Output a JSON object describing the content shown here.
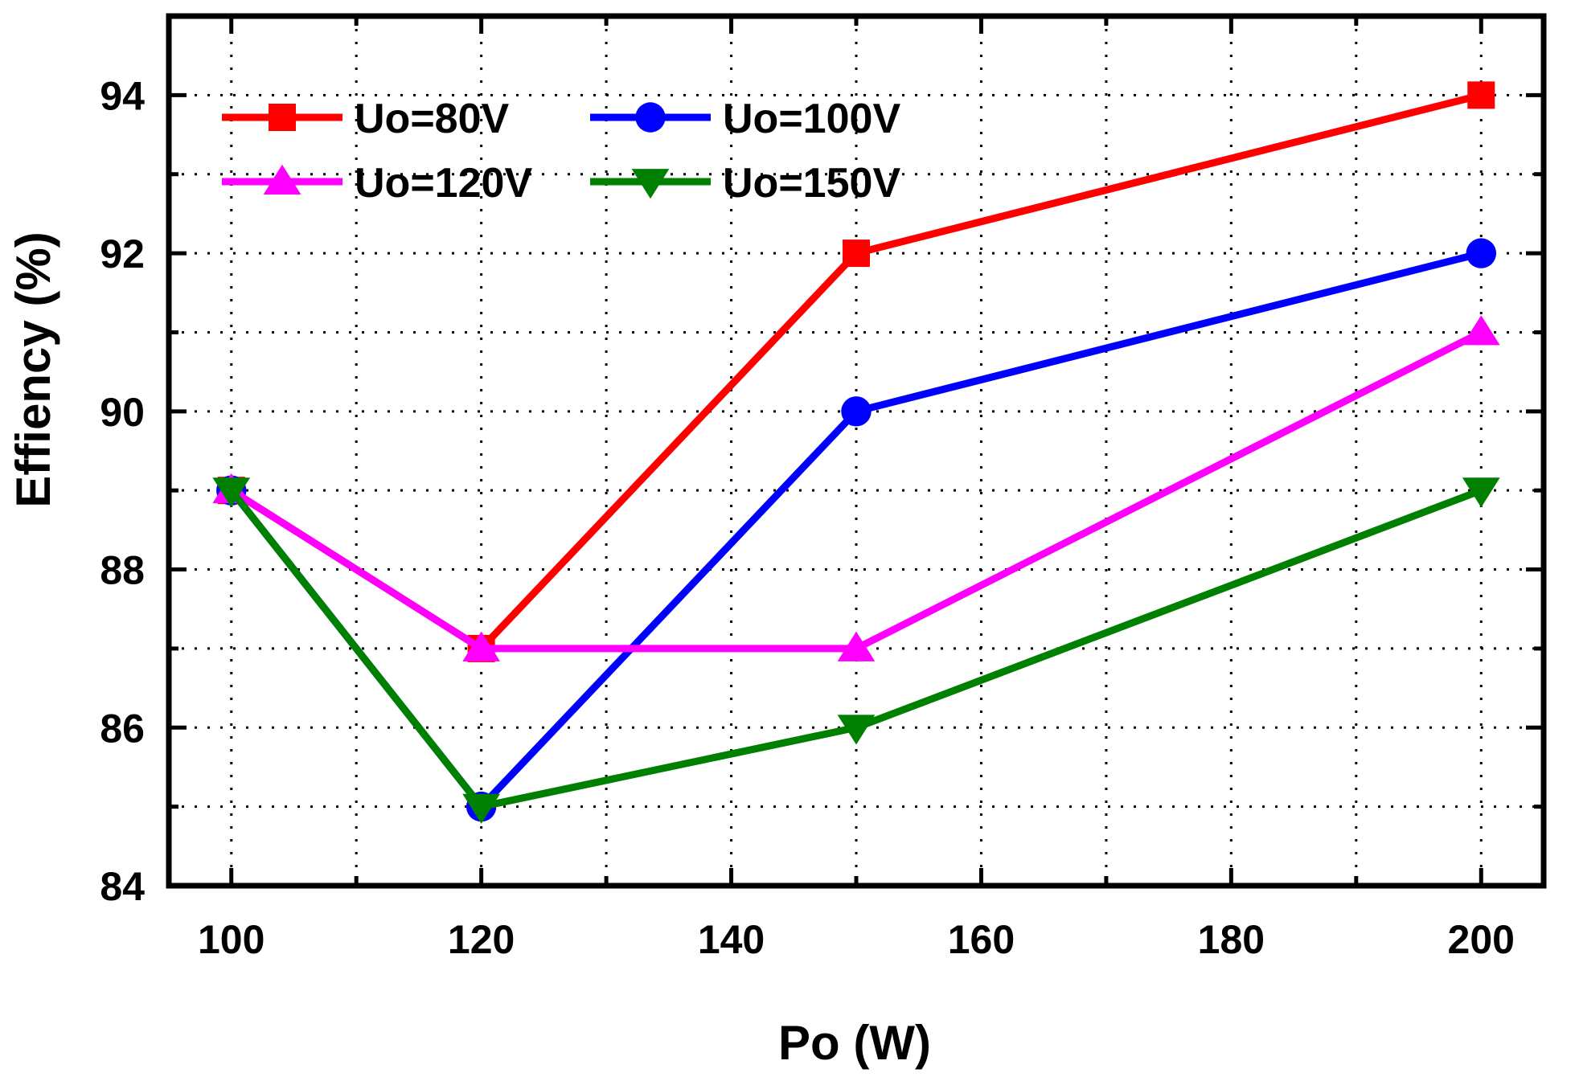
{
  "chart_data": {
    "type": "line",
    "title": "",
    "xlabel": "Po (W)",
    "ylabel": "Effiency (%)",
    "x": [
      100,
      120,
      150,
      200
    ],
    "xlim": [
      95,
      205
    ],
    "ylim": [
      84,
      95
    ],
    "xticks": [
      100,
      120,
      140,
      160,
      180,
      200
    ],
    "xtick_labels": [
      "100",
      "120",
      "140",
      "160",
      "180",
      "200"
    ],
    "xticks_minor": [
      110,
      130,
      150,
      170,
      190
    ],
    "yticks": [
      84,
      86,
      88,
      90,
      92,
      94
    ],
    "ytick_labels": [
      "84",
      "86",
      "88",
      "90",
      "92",
      "94"
    ],
    "yticks_minor": [
      85,
      87,
      89,
      91,
      93
    ],
    "grid": true,
    "legend_position": "top-left",
    "series": [
      {
        "name": "Uo=80V",
        "values": [
          89,
          87,
          92,
          94
        ],
        "color": "#ff0000",
        "marker": "square"
      },
      {
        "name": "Uo=100V",
        "values": [
          89,
          85,
          90,
          92
        ],
        "color": "#0000ff",
        "marker": "circle"
      },
      {
        "name": "Uo=120V",
        "values": [
          89,
          87,
          87,
          91
        ],
        "color": "#ff00ff",
        "marker": "triangle-up"
      },
      {
        "name": "Uo=150V",
        "values": [
          89,
          85,
          86,
          89
        ],
        "color": "#008000",
        "marker": "triangle-down"
      }
    ]
  }
}
